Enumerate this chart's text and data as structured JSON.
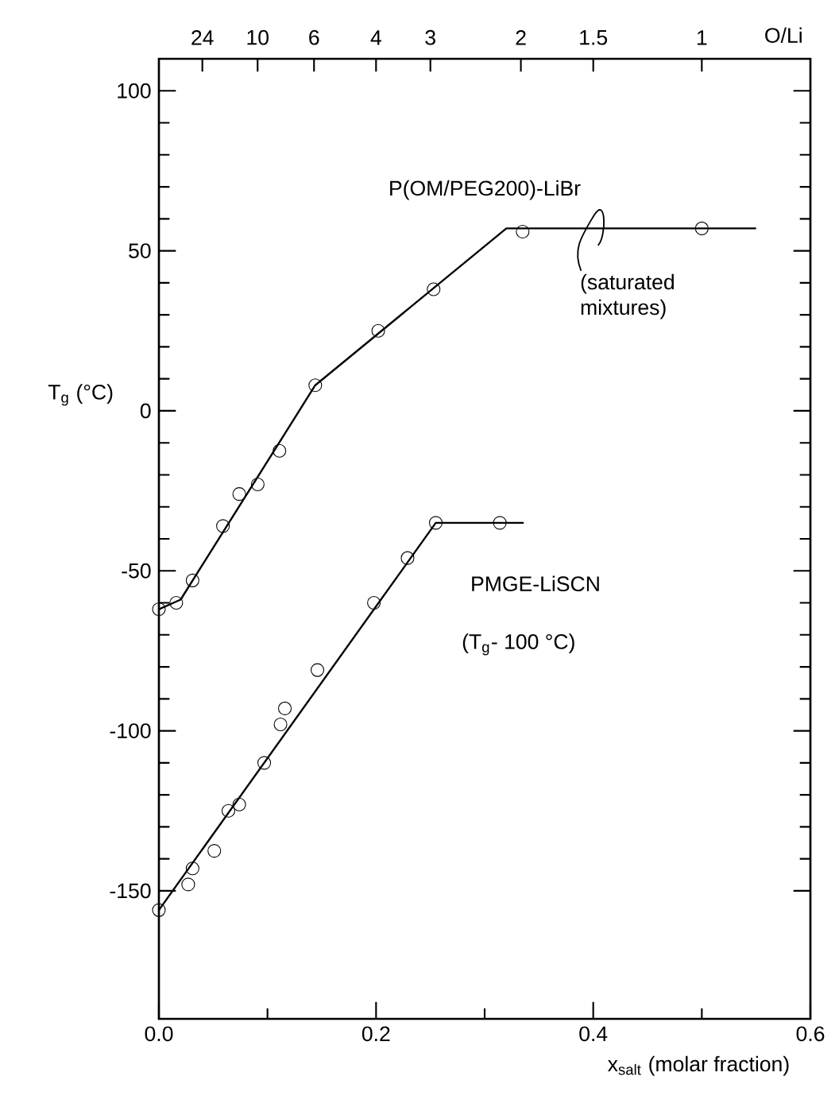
{
  "chart_data": {
    "type": "scatter",
    "xlabel": "x$_{salt}$ (molar fraction)",
    "ylabel": "T$_{g}$ (°C)",
    "xlim": [
      0,
      0.6
    ],
    "xticks": [
      {
        "value": 0,
        "label": "0.0"
      },
      {
        "value": 0.2,
        "label": "0.2"
      },
      {
        "value": 0.4,
        "label": "0.4"
      },
      {
        "value": 0.6,
        "label": "0.6"
      }
    ],
    "ylim": [
      -190,
      110
    ],
    "yticks": [
      -150,
      -100,
      -50,
      0,
      50,
      100
    ],
    "grid": false,
    "series": [
      {
        "name": "P(OM/PEG200)-LiBr",
        "color": "#000000",
        "marker": "circle",
        "x": [
          0,
          0.016,
          0.031,
          0.059,
          0.074,
          0.091,
          0.111,
          0.144,
          0.202,
          0.253,
          0.335,
          0.5
        ],
        "values": [
          -62,
          -60,
          -53,
          -36,
          -26,
          -23,
          -12.5,
          8,
          25,
          38,
          56,
          57
        ]
      },
      {
        "type": "line",
        "color": "#000000",
        "marker": "none",
        "x": [
          0,
          0.02,
          0.144,
          0.32,
          0.55
        ],
        "values": [
          -62,
          -59,
          8,
          57,
          57
        ]
      },
      {
        "name": "PMGE-LiSCN",
        "color": "#000000",
        "marker": "circle",
        "x": [
          0,
          0.027,
          0.031,
          0.051,
          0.064,
          0.074,
          0.097,
          0.112,
          0.116,
          0.146,
          0.198,
          0.229,
          0.255,
          0.314
        ],
        "values": [
          -156,
          -148,
          -143,
          -137.5,
          -125,
          -123,
          -110,
          -98,
          -93,
          -81,
          -60,
          -46,
          -35,
          -35
        ]
      },
      {
        "type": "line",
        "color": "#000000",
        "marker": "none",
        "x": [
          0,
          0.255,
          0.336
        ],
        "values": [
          -156,
          -35,
          -35
        ]
      }
    ],
    "annotations": [
      {
        "text": "(saturated mixtures)",
        "x": 0.42,
        "y": 57
      },
      "(T$_{g}$- 100 °C)",
      "O/Li",
      "24",
      "10",
      "6",
      "4",
      "3",
      "2",
      "1.5",
      "1"
    ]
  }
}
